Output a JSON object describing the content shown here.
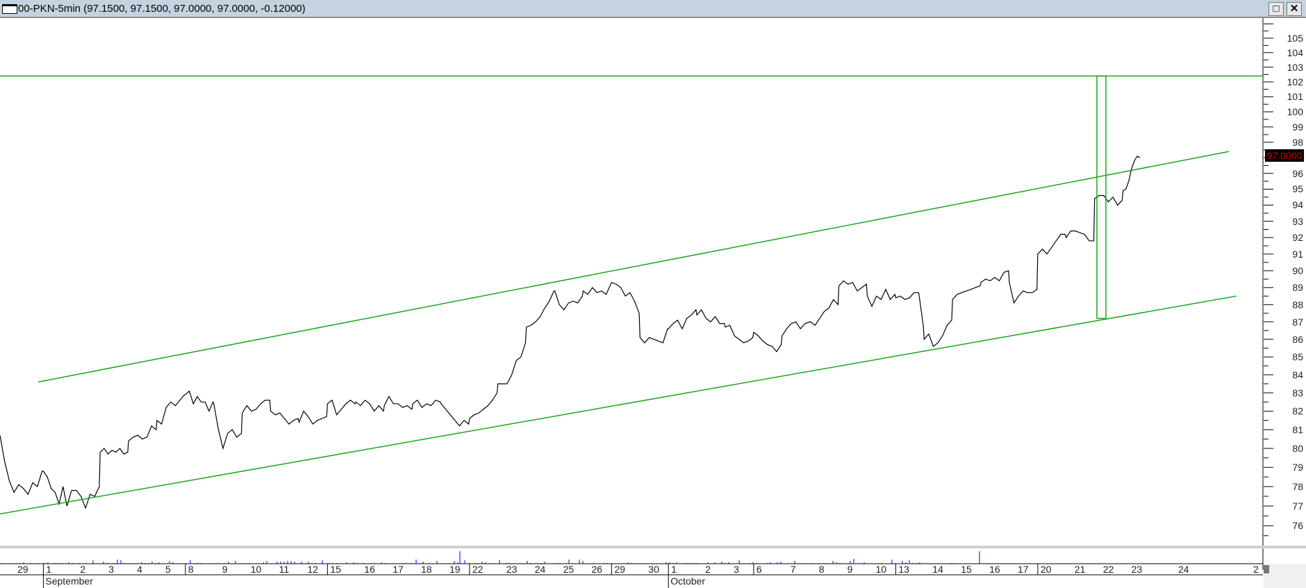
{
  "window": {
    "title": "00-PKN-5min (97.1500, 97.1500, 97.0000, 97.0000, -0.12000)",
    "maximize_label": "□",
    "close_label": "✕"
  },
  "chart_data": {
    "type": "line",
    "title": "",
    "xlabel": "",
    "ylabel": "",
    "y_scale": "log",
    "ylim": [
      75,
      106
    ],
    "y_ticks": [
      "105",
      "104",
      "103",
      "102",
      "101",
      "100",
      "99",
      "98",
      "96",
      "95",
      "94",
      "93",
      "92",
      "91",
      "90",
      "89",
      "88",
      "87",
      "86",
      "85",
      "84",
      "83",
      "82",
      "81",
      "80",
      "79",
      "78",
      "77",
      "76"
    ],
    "last_price_label": "97.0000",
    "colors": {
      "price_line": "#000000",
      "drawings": "#1aa51a",
      "volume": "#0000ee",
      "last_price_text": "#d00000"
    },
    "x_tick_labels": [
      "29",
      "1",
      "2",
      "3",
      "4",
      "5",
      "8",
      "9",
      "10",
      "11",
      "12",
      "15",
      "16",
      "17",
      "18",
      "19",
      "22",
      "23",
      "24",
      "25",
      "26",
      "29",
      "30",
      "1",
      "2",
      "3",
      "6",
      "7",
      "8",
      "9",
      "10",
      "13",
      "14",
      "15",
      "16",
      "17",
      "20",
      "21",
      "22",
      "23",
      "24",
      "2"
    ],
    "month_labels": [
      "September",
      "October"
    ],
    "series": [
      {
        "days": [
          {
            "day": "Aug 29",
            "prices": [
              80.7,
              79.3,
              78.3,
              77.7,
              78.1,
              77.9,
              77.6,
              78.2,
              78.0,
              78.8
            ]
          },
          {
            "day": "Sep 1",
            "prices": [
              78.8,
              78.5,
              77.9,
              77.7,
              77.1,
              78.0,
              77.0,
              77.7
            ]
          },
          {
            "day": "Sep 2",
            "prices": [
              77.8,
              77.8,
              77.5,
              76.9,
              77.6,
              77.5,
              78.0
            ]
          },
          {
            "day": "Sep 3",
            "prices": [
              79.8,
              80.0,
              79.7,
              79.9,
              79.8,
              80.0,
              79.7,
              79.8
            ]
          },
          {
            "day": "Sep 4",
            "prices": [
              80.4,
              80.6,
              80.7,
              80.5,
              80.6,
              81.2,
              81.0
            ]
          },
          {
            "day": "Sep 5",
            "prices": [
              81.5,
              81.3,
              82.2,
              82.5,
              82.3,
              82.6,
              82.9
            ]
          },
          {
            "day": "Sep 8",
            "prices": [
              82.9,
              83.1,
              82.4,
              82.8,
              82.5,
              82.5,
              82.0,
              82.5
            ]
          },
          {
            "day": "Sep 9",
            "prices": [
              82.4,
              81.0,
              80.0,
              80.8,
              81.0,
              80.6,
              80.8
            ]
          },
          {
            "day": "Sep 10",
            "prices": [
              81.9,
              82.3,
              82.0,
              82.1,
              82.4,
              82.6,
              82.6
            ]
          },
          {
            "day": "Sep 11",
            "prices": [
              82.0,
              81.8,
              81.9,
              81.6,
              81.3,
              81.5,
              81.6
            ]
          },
          {
            "day": "Sep 12",
            "prices": [
              81.4,
              82.0,
              81.7,
              81.3,
              81.5,
              81.6,
              81.7
            ]
          },
          {
            "day": "Sep 15",
            "prices": [
              82.4,
              82.6,
              81.8,
              82.1,
              82.4,
              82.6,
              82.4
            ]
          },
          {
            "day": "Sep 16",
            "prices": [
              82.5,
              82.3,
              82.6,
              82.4,
              82.0,
              82.3,
              82.0
            ]
          },
          {
            "day": "Sep 17",
            "prices": [
              82.3,
              82.8,
              82.4,
              82.4,
              82.2,
              82.3,
              82.1
            ]
          },
          {
            "day": "Sep 18",
            "prices": [
              82.4,
              82.6,
              82.2,
              82.4,
              82.3,
              82.6,
              82.5
            ]
          },
          {
            "day": "Sep 19",
            "prices": [
              82.4,
              82.1,
              81.8,
              81.5,
              81.2,
              81.5,
              81.3
            ]
          },
          {
            "day": "Sep 22",
            "prices": [
              81.6,
              81.8,
              81.9,
              82.1,
              82.3,
              82.6,
              83.0
            ]
          },
          {
            "day": "Sep 23",
            "prices": [
              83.5,
              83.5,
              83.5,
              84.0,
              84.8,
              85.0,
              85.8
            ]
          },
          {
            "day": "Sep 24",
            "prices": [
              86.7,
              86.8,
              87.0,
              87.3,
              87.8,
              88.2,
              88.8
            ]
          },
          {
            "day": "Sep 25",
            "prices": [
              88.8,
              88.0,
              87.7,
              88.1,
              88.2,
              88.1,
              88.5
            ]
          },
          {
            "day": "Sep 26",
            "prices": [
              88.8,
              88.6,
              89.0,
              88.7,
              88.8,
              88.6,
              89.2
            ]
          },
          {
            "day": "Sep 29",
            "prices": [
              89.3,
              89.2,
              89.0,
              88.5,
              88.7,
              88.2,
              87.5
            ]
          },
          {
            "day": "Sep 30",
            "prices": [
              86.1,
              85.8,
              86.1,
              86.0,
              85.9,
              85.8,
              86.6
            ]
          },
          {
            "day": "Oct 1",
            "prices": [
              86.6,
              86.9,
              87.1,
              86.6,
              87.2,
              87.4,
              87.7
            ]
          },
          {
            "day": "Oct 2",
            "prices": [
              87.4,
              87.7,
              87.2,
              87.0,
              87.3,
              86.9,
              86.9
            ]
          },
          {
            "day": "Oct 3",
            "prices": [
              86.7,
              86.8,
              86.2,
              86.0,
              85.8,
              85.9,
              86.1
            ]
          },
          {
            "day": "Oct 6",
            "prices": [
              86.4,
              86.2,
              85.9,
              85.7,
              85.6,
              85.3,
              85.7
            ]
          },
          {
            "day": "Oct 7",
            "prices": [
              86.2,
              86.6,
              86.9,
              87.0,
              86.6,
              86.9,
              87.0
            ]
          },
          {
            "day": "Oct 8",
            "prices": [
              87.0,
              86.8,
              87.2,
              87.6,
              87.8,
              88.3,
              88.0
            ]
          },
          {
            "day": "Oct 9",
            "prices": [
              89.1,
              89.4,
              89.2,
              89.3,
              88.8,
              89.0,
              89.2
            ]
          },
          {
            "day": "Oct 10",
            "prices": [
              88.5,
              87.9,
              88.5,
              88.3,
              88.9,
              88.3,
              88.6
            ]
          },
          {
            "day": "Oct 13",
            "prices": [
              88.4,
              88.5,
              88.3,
              88.4,
              88.7,
              88.7,
              86.8
            ]
          },
          {
            "day": "Oct 14",
            "prices": [
              86.0,
              86.3,
              85.6,
              85.8,
              86.2,
              86.8,
              87.1
            ]
          },
          {
            "day": "Oct 15",
            "prices": [
              88.3,
              88.6,
              88.7,
              88.8,
              88.9,
              89.0,
              89.1
            ]
          },
          {
            "day": "Oct 16",
            "prices": [
              89.3,
              89.5,
              89.4,
              89.6,
              89.4,
              89.9,
              90.0
            ]
          },
          {
            "day": "Oct 17",
            "prices": [
              89.3,
              88.1,
              88.5,
              88.8,
              88.7,
              88.7,
              88.9
            ]
          },
          {
            "day": "Oct 20",
            "prices": [
              91.0,
              91.3,
              91.0,
              91.4,
              91.8,
              92.2,
              92.2
            ]
          },
          {
            "day": "Oct 21",
            "prices": [
              92.0,
              92.4,
              92.4,
              92.3,
              92.2,
              91.8,
              91.8
            ]
          },
          {
            "day": "Oct 22",
            "prices": [
              94.4,
              94.6,
              94.6,
              94.2,
              94.5,
              94.0,
              94.3
            ]
          },
          {
            "day": "Oct 23",
            "prices": [
              94.9,
              95.0,
              95.5,
              96.3,
              96.8,
              97.1,
              97.0
            ]
          }
        ]
      }
    ],
    "drawings": {
      "upper_channel": {
        "from_price": 83.6,
        "to_price": 97.4
      },
      "lower_channel": {
        "from_price": 76.6,
        "to_price": 88.5
      },
      "horizontal_level": 102.4,
      "target_box": {
        "top_price": 102.4,
        "bottom_price": 87.2
      }
    }
  }
}
